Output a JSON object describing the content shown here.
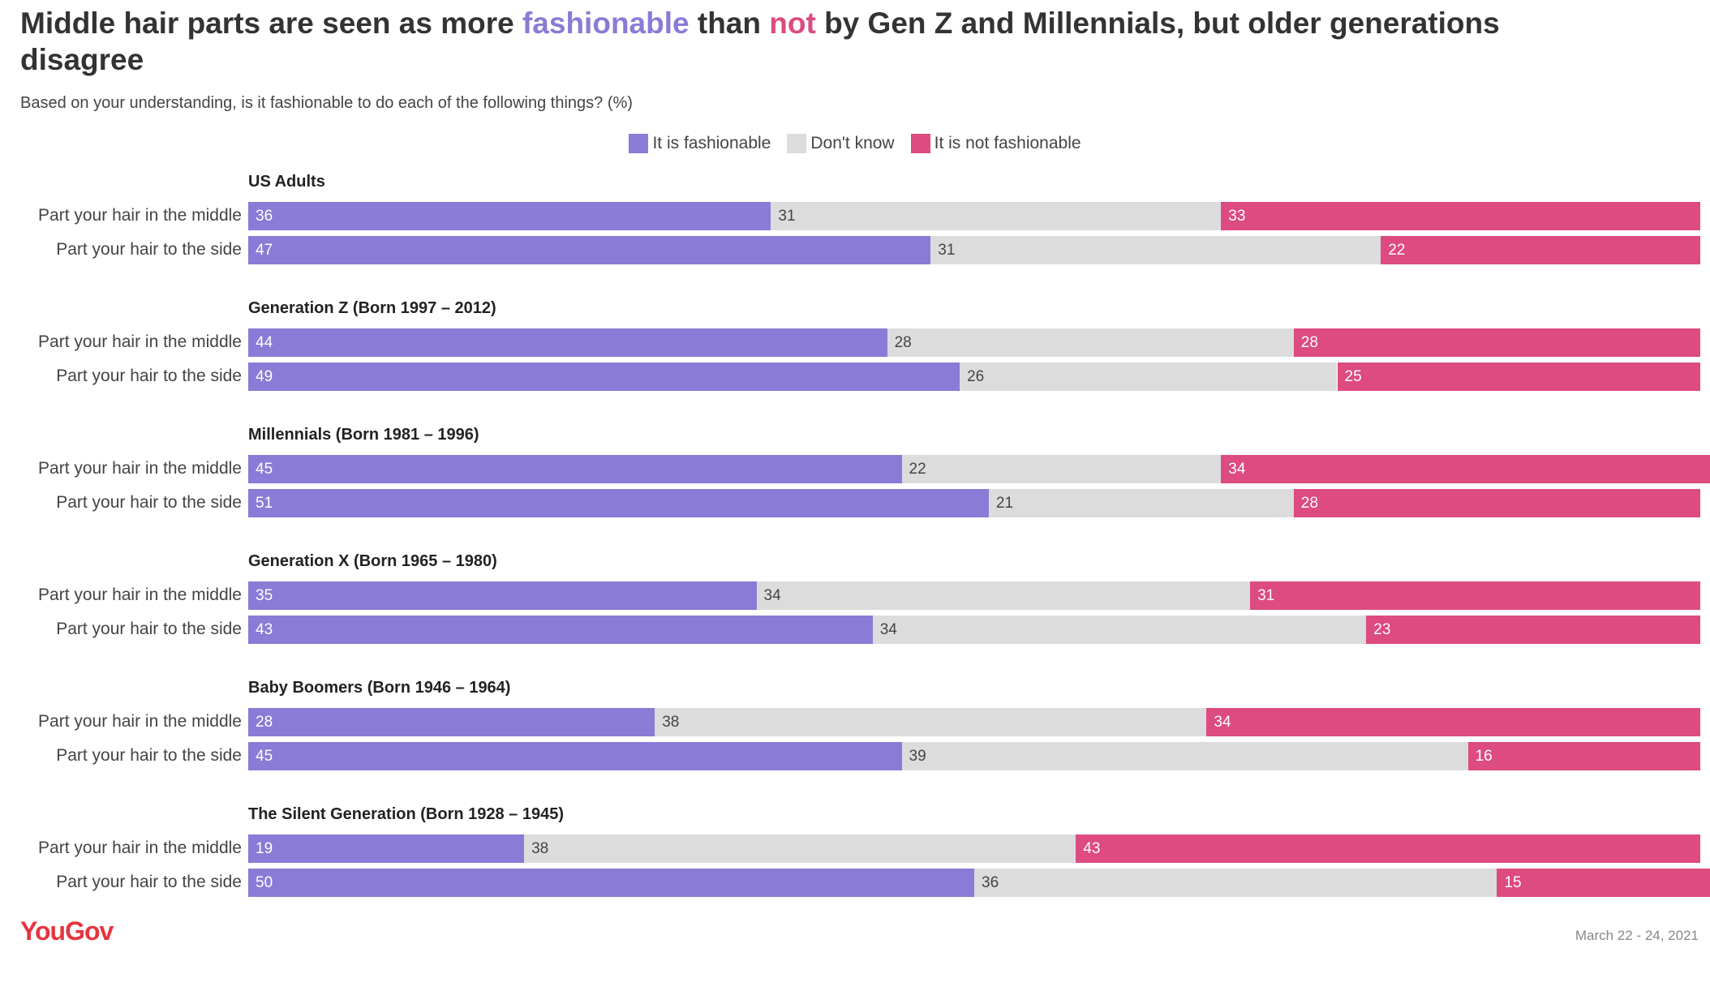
{
  "chart_data": {
    "type": "bar",
    "stacked": true,
    "orientation": "horizontal",
    "title": [
      "Middle hair parts are seen as more ",
      "fashionable",
      " than ",
      "not",
      " by Gen Z and Millennials, but older generations disagree"
    ],
    "subtitle": "Based on your understanding, is it fashionable to do each of the following things? (%)",
    "source": "YouGov",
    "date": "March 22 - 24, 2021",
    "xlim": [
      0,
      100
    ],
    "series": [
      {
        "name": "It is fashionable",
        "color": "#8a7bd6"
      },
      {
        "name": "Don't know",
        "color": "#dcdcdc"
      },
      {
        "name": "It is not fashionable",
        "color": "#dd4b80"
      }
    ],
    "groups": [
      {
        "title": "US Adults",
        "categories": [
          "Part your hair in the middle",
          "Part your hair to the side"
        ],
        "values": [
          [
            36,
            31,
            33
          ],
          [
            47,
            31,
            22
          ]
        ]
      },
      {
        "title": "Generation Z (Born 1997 – 2012)",
        "categories": [
          "Part your hair in the middle",
          "Part your hair to the side"
        ],
        "values": [
          [
            44,
            28,
            28
          ],
          [
            49,
            26,
            25
          ]
        ]
      },
      {
        "title": "Millennials (Born 1981 – 1996)",
        "categories": [
          "Part your hair in the middle",
          "Part your hair to the side"
        ],
        "values": [
          [
            45,
            22,
            34
          ],
          [
            51,
            21,
            28
          ]
        ]
      },
      {
        "title": "Generation X (Born 1965 – 1980)",
        "categories": [
          "Part your hair in the middle",
          "Part your hair to the side"
        ],
        "values": [
          [
            35,
            34,
            31
          ],
          [
            43,
            34,
            23
          ]
        ]
      },
      {
        "title": "Baby Boomers (Born 1946 – 1964)",
        "categories": [
          "Part your hair in the middle",
          "Part your hair to the side"
        ],
        "values": [
          [
            28,
            38,
            34
          ],
          [
            45,
            39,
            16
          ]
        ]
      },
      {
        "title": "The Silent Generation (Born 1928 – 1945)",
        "categories": [
          "Part your hair in the middle",
          "Part your hair to the side"
        ],
        "values": [
          [
            19,
            38,
            43
          ],
          [
            50,
            36,
            15
          ]
        ]
      }
    ]
  }
}
